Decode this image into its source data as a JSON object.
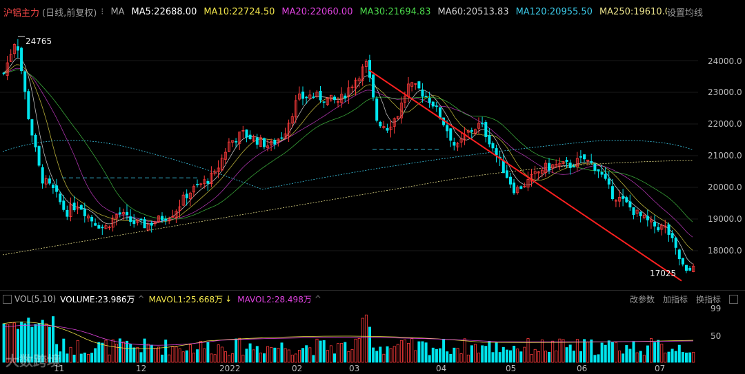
{
  "header": {
    "symbol": "沪铝主力",
    "period": "(日线,前复权)",
    "settings_glyph": "⁝",
    "ma_label": "MA",
    "ma": [
      {
        "text": "MA5:22688.00",
        "color": "#ffffff"
      },
      {
        "text": "MA10:22724.50",
        "color": "#f2e64b"
      },
      {
        "text": "MA20:22060.00",
        "color": "#e043e0"
      },
      {
        "text": "MA30:21694.83",
        "color": "#4bd94b"
      },
      {
        "text": "MA60:20513.83",
        "color": "#d0d0d0"
      },
      {
        "text": "MA120:20955.50",
        "color": "#3bc8e6"
      },
      {
        "text": "MA250:19610.00",
        "color": "#e8e08a"
      }
    ],
    "set_ma": "设置均线"
  },
  "price_axis": [
    "24000.0",
    "23000.0",
    "22000.0",
    "21000.0",
    "20000.0",
    "19000.0",
    "18000.0"
  ],
  "annotations": {
    "high": "24765",
    "low": "17025"
  },
  "volume_header": {
    "label": "VOL(5,10)",
    "volume": "VOLUME:23.986万",
    "mavol1": "MAVOL1:25.668万",
    "mavol2": "MAVOL2:28.498万",
    "arrow_down": "↓",
    "arrow_up": "^",
    "change_params": "改参数",
    "add_indicator": "加指标",
    "swap_indicator": "换指标"
  },
  "volume_axis": [
    "99",
    "50"
  ],
  "x_axis": [
    "11",
    "12",
    "2022",
    "02",
    "03",
    "04",
    "05",
    "06",
    "07"
  ],
  "watermark": "大数跨境",
  "colors": {
    "up": "#ff3b3b",
    "down": "#00e5ee",
    "trend": "#ff2020"
  }
}
